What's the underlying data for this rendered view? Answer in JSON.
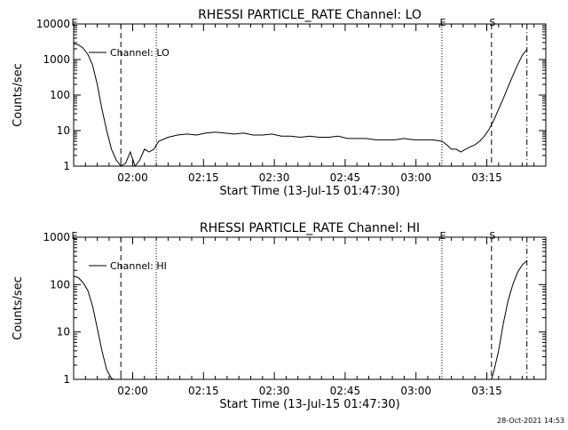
{
  "footer_timestamp": "28-Oct-2021 14:53",
  "marker_labels": {
    "eclipse": "E",
    "saa": "S"
  },
  "chart_data": [
    {
      "type": "line",
      "title": "RHESSI PARTICLE_RATE Channel: LO",
      "xlabel": "Start Time (13-Jul-15 01:47:30)",
      "ylabel": "Counts/sec",
      "yscale": "log",
      "ylim": [
        1,
        10000
      ],
      "yticks": [
        1,
        10,
        100,
        1000,
        10000
      ],
      "yticklabels": [
        "1",
        "10",
        "100",
        "1000",
        "10000"
      ],
      "xlim_minutes": [
        0,
        100
      ],
      "xtick_labels": [
        "02:00",
        "02:15",
        "02:30",
        "02:45",
        "03:00",
        "03:15"
      ],
      "xtick_minutes": [
        12.5,
        27.5,
        42.5,
        57.5,
        72.5,
        87.5
      ],
      "legend": {
        "entry": "Channel: LO",
        "placement": "top-left"
      },
      "markers": [
        {
          "label": "E",
          "minute": 0,
          "style": "dotted"
        },
        {
          "label": "",
          "minute": 10,
          "style": "dashed"
        },
        {
          "label": "",
          "minute": 17.5,
          "style": "dotted"
        },
        {
          "label": "E",
          "minute": 78,
          "style": "dotted"
        },
        {
          "label": "S",
          "minute": 88.5,
          "style": "dashed"
        },
        {
          "label": "",
          "minute": 96,
          "style": "dashdot"
        }
      ],
      "series": [
        {
          "name": "Channel: LO",
          "x": [
            0,
            1,
            2,
            3,
            4,
            5,
            6,
            7,
            8,
            9,
            10,
            11,
            12,
            13,
            14,
            15,
            16,
            17,
            18,
            20,
            22,
            24,
            26,
            28,
            30,
            32,
            34,
            36,
            38,
            40,
            42,
            44,
            46,
            48,
            50,
            52,
            54,
            56,
            58,
            60,
            62,
            64,
            66,
            68,
            70,
            72,
            74,
            76,
            78,
            79,
            80,
            81,
            82,
            83,
            84,
            85,
            86,
            87,
            88,
            89,
            90,
            91,
            92,
            93,
            94,
            95,
            96
          ],
          "y": [
            2800,
            2600,
            2100,
            1400,
            700,
            200,
            40,
            10,
            3,
            1.5,
            1,
            1.2,
            2.5,
            1,
            1.5,
            3,
            2.5,
            3,
            5,
            6.5,
            7.5,
            8,
            7.5,
            8.5,
            9,
            8.5,
            8,
            8.5,
            7.5,
            7.5,
            8,
            7,
            7,
            6.5,
            7,
            6.5,
            6.5,
            7,
            6,
            6,
            6,
            5.5,
            5.5,
            5.5,
            6,
            5.5,
            5.5,
            5.5,
            5,
            4,
            3,
            3,
            2.5,
            3,
            3.5,
            4,
            5,
            7,
            11,
            20,
            40,
            80,
            170,
            350,
            700,
            1300,
            1900
          ]
        }
      ]
    },
    {
      "type": "line",
      "title": "RHESSI PARTICLE_RATE Channel: HI",
      "xlabel": "Start Time (13-Jul-15 01:47:30)",
      "ylabel": "Counts/sec",
      "yscale": "log",
      "ylim": [
        1,
        1000
      ],
      "yticks": [
        1,
        10,
        100,
        1000
      ],
      "yticklabels": [
        "1",
        "10",
        "100",
        "1000"
      ],
      "xlim_minutes": [
        0,
        100
      ],
      "xtick_labels": [
        "02:00",
        "02:15",
        "02:30",
        "02:45",
        "03:00",
        "03:15"
      ],
      "xtick_minutes": [
        12.5,
        27.5,
        42.5,
        57.5,
        72.5,
        87.5
      ],
      "legend": {
        "entry": "Channel: HI",
        "placement": "top-left"
      },
      "markers": [
        {
          "label": "E",
          "minute": 0,
          "style": "dotted"
        },
        {
          "label": "",
          "minute": 10,
          "style": "dashed"
        },
        {
          "label": "",
          "minute": 17.5,
          "style": "dotted"
        },
        {
          "label": "E",
          "minute": 78,
          "style": "dotted"
        },
        {
          "label": "S",
          "minute": 88.5,
          "style": "dashed"
        },
        {
          "label": "",
          "minute": 96,
          "style": "dashdot"
        }
      ],
      "series": [
        {
          "name": "Channel: HI",
          "x": [
            0,
            1,
            2,
            3,
            4,
            5,
            6,
            7,
            8,
            8.5,
            88.5,
            89,
            90,
            91,
            92,
            93,
            94,
            95,
            96
          ],
          "y": [
            150,
            140,
            110,
            75,
            35,
            12,
            4,
            1.6,
            1.05,
            1,
            1,
            1.5,
            4,
            15,
            45,
            100,
            180,
            260,
            320
          ]
        }
      ]
    }
  ]
}
